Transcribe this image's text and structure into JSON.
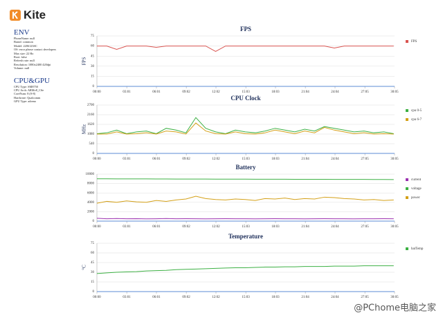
{
  "header": {
    "app": "Kite"
  },
  "env": {
    "title": "ENV",
    "lines": [
      "PhoneName: null",
      "Brand: common",
      "Model: 2206123SC",
      "OS: error please contact developers",
      "Max size: 22 Hz",
      "Root: false",
      "Refresh rate: null",
      "Resolution: 1080x2400 420dpi",
      "Volume: null"
    ]
  },
  "cpu_gpu": {
    "title": "CPU&GPU",
    "lines": [
      "CPU Type: SM8750",
      "CPU Arch: ARMv8_CSe",
      "CoreNum: 8 (0-8)",
      "Hardware: Qualcomm",
      "GPU Type: adreno"
    ]
  },
  "watermark": "@PChome电脑之家",
  "chart_data": [
    {
      "type": "line",
      "title": "FPS",
      "y_label": "FPS",
      "grid": true,
      "x": [
        0,
        60,
        120,
        180,
        240,
        300,
        360,
        420,
        480,
        540,
        600,
        660,
        720,
        780,
        840,
        900,
        960,
        1020,
        1080,
        1140,
        1200,
        1260,
        1320,
        1380,
        1440,
        1500,
        1560,
        1620,
        1680,
        1740,
        1800
      ],
      "xlim": [
        0,
        1805
      ],
      "xticks": [
        {
          "value": 0,
          "label": "00:00"
        },
        {
          "value": 181,
          "label": "03:01"
        },
        {
          "value": 361,
          "label": "06:01"
        },
        {
          "value": 542,
          "label": "09:02"
        },
        {
          "value": 722,
          "label": "12:02"
        },
        {
          "value": 903,
          "label": "15:03"
        },
        {
          "value": 1083,
          "label": "18:03"
        },
        {
          "value": 1264,
          "label": "21:04"
        },
        {
          "value": 1444,
          "label": "24:04"
        },
        {
          "value": 1625,
          "label": "27:05"
        },
        {
          "value": 1805,
          "label": "30:05"
        }
      ],
      "ylim": [
        0,
        75
      ],
      "yticks": [
        0,
        15,
        30,
        45,
        60,
        75
      ],
      "series": [
        {
          "name": "FPS",
          "color": "#d9534f",
          "values": [
            60,
            60,
            55,
            60,
            60,
            60,
            58,
            60,
            60,
            60,
            60,
            60,
            52,
            60,
            60,
            60,
            60,
            60,
            60,
            60,
            60,
            60,
            60,
            60,
            57,
            60,
            60,
            60,
            60,
            60,
            60
          ]
        }
      ]
    },
    {
      "type": "line",
      "title": "CPU Clock",
      "y_label": "MHz",
      "grid": true,
      "x": [
        0,
        60,
        120,
        180,
        240,
        300,
        360,
        420,
        480,
        540,
        600,
        660,
        720,
        780,
        840,
        900,
        960,
        1020,
        1080,
        1140,
        1200,
        1260,
        1320,
        1380,
        1440,
        1500,
        1560,
        1620,
        1680,
        1740,
        1800
      ],
      "xlim": [
        0,
        1805
      ],
      "xticks": [
        {
          "value": 0,
          "label": "00:00"
        },
        {
          "value": 181,
          "label": "03:01"
        },
        {
          "value": 361,
          "label": "06:01"
        },
        {
          "value": 542,
          "label": "09:02"
        },
        {
          "value": 722,
          "label": "12:02"
        },
        {
          "value": 903,
          "label": "15:03"
        },
        {
          "value": 1083,
          "label": "18:03"
        },
        {
          "value": 1264,
          "label": "21:04"
        },
        {
          "value": 1444,
          "label": "24:04"
        },
        {
          "value": 1625,
          "label": "27:05"
        },
        {
          "value": 1805,
          "label": "30:05"
        }
      ],
      "ylim": [
        0,
        2700
      ],
      "yticks": [
        0,
        540,
        1080,
        1620,
        2160,
        2700
      ],
      "series": [
        {
          "name": "cpu 0-5",
          "color": "#3cb043",
          "values": [
            1100,
            1150,
            1300,
            1100,
            1200,
            1250,
            1100,
            1400,
            1300,
            1150,
            2000,
            1400,
            1200,
            1100,
            1300,
            1200,
            1150,
            1250,
            1400,
            1300,
            1200,
            1350,
            1250,
            1500,
            1400,
            1300,
            1200,
            1250,
            1150,
            1200,
            1100
          ]
        },
        {
          "name": "cpu 6-7",
          "color": "#d4a017",
          "values": [
            1080,
            1080,
            1200,
            1080,
            1100,
            1150,
            1080,
            1250,
            1200,
            1080,
            1700,
            1250,
            1100,
            1080,
            1200,
            1100,
            1080,
            1150,
            1300,
            1200,
            1100,
            1250,
            1150,
            1450,
            1300,
            1200,
            1100,
            1150,
            1080,
            1100,
            1080
          ]
        }
      ]
    },
    {
      "type": "line",
      "title": "Battery",
      "grid": true,
      "x": [
        0,
        60,
        120,
        180,
        240,
        300,
        360,
        420,
        480,
        540,
        600,
        660,
        720,
        780,
        840,
        900,
        960,
        1020,
        1080,
        1140,
        1200,
        1260,
        1320,
        1380,
        1440,
        1500,
        1560,
        1620,
        1680,
        1740,
        1800
      ],
      "xlim": [
        0,
        1805
      ],
      "xticks": [
        {
          "value": 0,
          "label": "00:00"
        },
        {
          "value": 181,
          "label": "03:01"
        },
        {
          "value": 361,
          "label": "06:01"
        },
        {
          "value": 542,
          "label": "09:02"
        },
        {
          "value": 722,
          "label": "12:02"
        },
        {
          "value": 903,
          "label": "15:03"
        },
        {
          "value": 1083,
          "label": "18:03"
        },
        {
          "value": 1264,
          "label": "21:04"
        },
        {
          "value": 1444,
          "label": "24:04"
        },
        {
          "value": 1625,
          "label": "27:05"
        },
        {
          "value": 1805,
          "label": "30:05"
        }
      ],
      "ylim": [
        0,
        10000
      ],
      "yticks": [
        0,
        2000,
        4000,
        6000,
        8000,
        10000
      ],
      "series": [
        {
          "name": "current",
          "color": "#9b30b0",
          "values": [
            600,
            500,
            550,
            500,
            520,
            480,
            500,
            550,
            500,
            520,
            500,
            480,
            500,
            520,
            500,
            500,
            480,
            500,
            520,
            500,
            500,
            480,
            500,
            520,
            500,
            500,
            480,
            500,
            500,
            520,
            500
          ]
        },
        {
          "name": "voltage",
          "color": "#3cb043",
          "values": [
            9000,
            9000,
            8990,
            8990,
            8980,
            8980,
            8970,
            8970,
            8960,
            8960,
            8950,
            8950,
            8940,
            8940,
            8930,
            8930,
            8920,
            8920,
            8910,
            8910,
            8900,
            8900,
            8890,
            8890,
            8880,
            8880,
            8870,
            8870,
            8860,
            8860,
            8850
          ]
        },
        {
          "name": "power",
          "color": "#d4a017",
          "values": [
            3800,
            4200,
            4000,
            4300,
            4100,
            4000,
            4400,
            4200,
            4500,
            4700,
            5300,
            4800,
            4600,
            4500,
            4700,
            4600,
            4400,
            4800,
            4700,
            4900,
            4600,
            4800,
            4700,
            5100,
            5000,
            4800,
            4700,
            4500,
            4600,
            4400,
            4500
          ]
        }
      ]
    },
    {
      "type": "line",
      "title": "Temperature",
      "y_label": "°C",
      "grid": true,
      "x": [
        0,
        60,
        120,
        180,
        240,
        300,
        360,
        420,
        480,
        540,
        600,
        660,
        720,
        780,
        840,
        900,
        960,
        1020,
        1080,
        1140,
        1200,
        1260,
        1320,
        1380,
        1440,
        1500,
        1560,
        1620,
        1680,
        1740,
        1800
      ],
      "xlim": [
        0,
        1805
      ],
      "xticks": [
        {
          "value": 0,
          "label": "00:00"
        },
        {
          "value": 181,
          "label": "03:01"
        },
        {
          "value": 361,
          "label": "06:01"
        },
        {
          "value": 542,
          "label": "09:02"
        },
        {
          "value": 722,
          "label": "12:02"
        },
        {
          "value": 903,
          "label": "15:03"
        },
        {
          "value": 1083,
          "label": "18:03"
        },
        {
          "value": 1264,
          "label": "21:04"
        },
        {
          "value": 1444,
          "label": "24:04"
        },
        {
          "value": 1625,
          "label": "27:05"
        },
        {
          "value": 1805,
          "label": "30:05"
        }
      ],
      "ylim": [
        0,
        75
      ],
      "yticks": [
        0,
        15,
        30,
        45,
        60,
        75
      ],
      "series": [
        {
          "name": "batTemp",
          "color": "#3cb043",
          "values": [
            28,
            29,
            30,
            30.5,
            31,
            32,
            32.5,
            33,
            34,
            34.5,
            35,
            35.5,
            36,
            36.5,
            37,
            37,
            37.5,
            38,
            38,
            38.5,
            38.5,
            39,
            39,
            39,
            39.5,
            39.5,
            39.5,
            40,
            40,
            40,
            40
          ]
        }
      ]
    }
  ]
}
